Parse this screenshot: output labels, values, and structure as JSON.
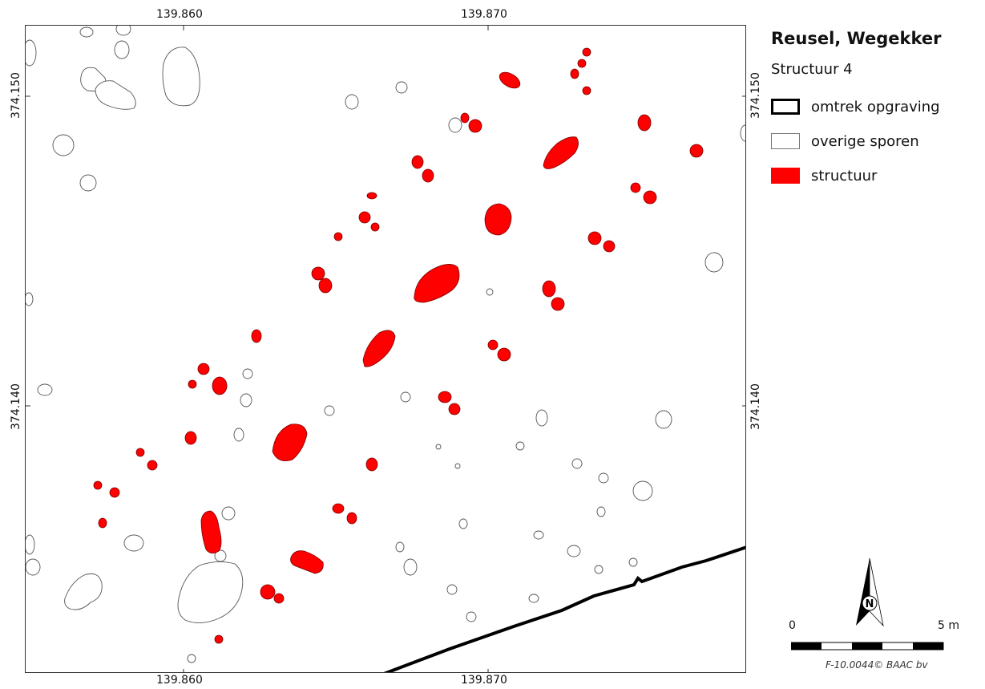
{
  "map": {
    "x_ticks": [
      "139.860",
      "139.870"
    ],
    "y_ticks": [
      "374.150",
      "374.140"
    ]
  },
  "legend": {
    "title": "Reusel, Wegekker",
    "subtitle": "Structuur 4",
    "items": [
      {
        "label": "omtrek opgraving",
        "symbol": "thick-black-outline"
      },
      {
        "label": "overige sporen",
        "symbol": "thin-grey-outline"
      },
      {
        "label": "structuur",
        "symbol": "red-fill"
      }
    ]
  },
  "north_arrow": {
    "label": "N"
  },
  "scale_bar": {
    "start_label": "0",
    "end_label": "5 m"
  },
  "credit": "F-10.0044© BAAC bv",
  "colors": {
    "structure": "#ff0000",
    "excavation_outline": "#000000",
    "other_features": "#555555"
  }
}
